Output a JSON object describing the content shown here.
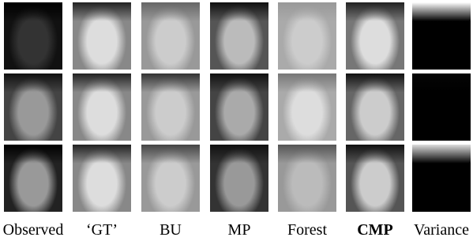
{
  "columns": [
    "Observed",
    "‘GT’",
    "BU",
    "MP",
    "Forest",
    "CMP",
    "Variance"
  ]
}
